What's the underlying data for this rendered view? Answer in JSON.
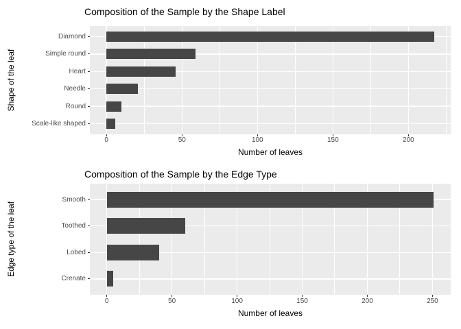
{
  "figure": {
    "background": "#ffffff"
  },
  "style": {
    "bar_color": "#464646",
    "panel_bg": "#ebebeb",
    "grid_color": "#ffffff",
    "axis_text_color": "#4d4d4d",
    "title_color": "#000000",
    "tick_mark_color": "#333333"
  },
  "chart_data": [
    {
      "type": "bar",
      "orientation": "horizontal",
      "title": "Composition of the Sample by the Shape Label",
      "xlabel": "Number of leaves",
      "ylabel": "Shape of the leaf",
      "categories": [
        "Diamond",
        "Simple round",
        "Heart",
        "Needle",
        "Round",
        "Scale-like shaped"
      ],
      "values": [
        217,
        59,
        46,
        21,
        10,
        6
      ],
      "xlim": [
        -11,
        228
      ],
      "x_ticks": [
        0,
        50,
        100,
        150,
        200
      ],
      "x_minor_step": 25,
      "grid": "on",
      "legend": "none"
    },
    {
      "type": "bar",
      "orientation": "horizontal",
      "title": "Composition of the Sample by the Edge Type",
      "xlabel": "Number of leaves",
      "ylabel": "Edge type of the leaf",
      "categories": [
        "Smooth",
        "Toothed",
        "Lobed",
        "Crenate"
      ],
      "values": [
        251,
        60,
        40,
        5
      ],
      "xlim": [
        -13,
        264
      ],
      "x_ticks": [
        0,
        50,
        100,
        150,
        200,
        250
      ],
      "x_minor_step": 25,
      "grid": "on",
      "legend": "none"
    }
  ]
}
